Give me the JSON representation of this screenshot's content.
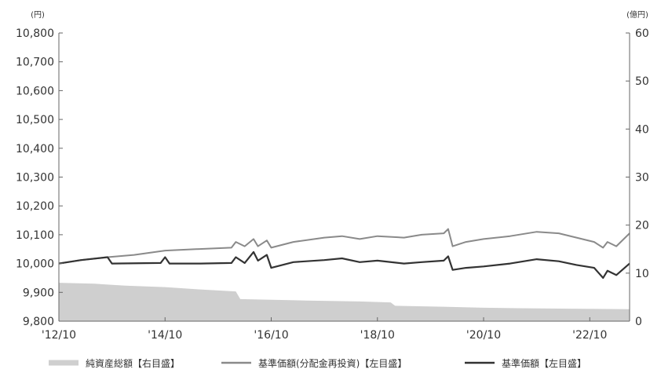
{
  "chart_data": {
    "type": "line",
    "left_axis": {
      "unit": "(円)",
      "min": 9800,
      "max": 10800,
      "ticks": [
        "9,800",
        "9,900",
        "10,000",
        "10,100",
        "10,200",
        "10,300",
        "10,400",
        "10,500",
        "10,600",
        "10,700",
        "10,800"
      ]
    },
    "right_axis": {
      "unit": "(億円)",
      "min": 0,
      "max": 60,
      "ticks": [
        "0",
        "10",
        "20",
        "30",
        "40",
        "50",
        "60"
      ]
    },
    "x_axis": {
      "start": "2012-10",
      "end": "2023-07",
      "ticks": [
        {
          "label": "'12/10",
          "date": "2012-10"
        },
        {
          "label": "'14/10",
          "date": "2014-10"
        },
        {
          "label": "'16/10",
          "date": "2016-10"
        },
        {
          "label": "'18/10",
          "date": "2018-10"
        },
        {
          "label": "'20/10",
          "date": "2020-10"
        },
        {
          "label": "'22/10",
          "date": "2022-10"
        }
      ]
    },
    "series": [
      {
        "name": "純資産総額【右目盛】",
        "type": "area",
        "axis": "right",
        "color": "#cfcfcf",
        "points": [
          [
            "2012-10",
            8.0
          ],
          [
            "2013-06",
            7.8
          ],
          [
            "2014-01",
            7.4
          ],
          [
            "2014-10",
            7.1
          ],
          [
            "2015-06",
            6.6
          ],
          [
            "2016-02",
            6.2
          ],
          [
            "2016-03",
            4.6
          ],
          [
            "2017-06",
            4.3
          ],
          [
            "2018-06",
            4.1
          ],
          [
            "2019-01",
            3.9
          ],
          [
            "2019-02",
            3.2
          ],
          [
            "2020-01",
            3.0
          ],
          [
            "2020-10",
            2.8
          ],
          [
            "2021-06",
            2.7
          ],
          [
            "2022-06",
            2.6
          ],
          [
            "2023-07",
            2.5
          ]
        ]
      },
      {
        "name": "基準価額(分配金再投資)【左目盛】",
        "type": "line",
        "axis": "left",
        "color": "#8a8a8a",
        "points": [
          [
            "2012-10",
            10000
          ],
          [
            "2013-03",
            10012
          ],
          [
            "2013-09",
            10022
          ],
          [
            "2014-03",
            10030
          ],
          [
            "2014-10",
            10045
          ],
          [
            "2015-05",
            10050
          ],
          [
            "2016-01",
            10055
          ],
          [
            "2016-02",
            10075
          ],
          [
            "2016-04",
            10060
          ],
          [
            "2016-06",
            10085
          ],
          [
            "2016-07",
            10060
          ],
          [
            "2016-09",
            10080
          ],
          [
            "2016-10",
            10055
          ],
          [
            "2017-03",
            10075
          ],
          [
            "2017-10",
            10090
          ],
          [
            "2018-02",
            10095
          ],
          [
            "2018-06",
            10085
          ],
          [
            "2018-10",
            10095
          ],
          [
            "2019-04",
            10090
          ],
          [
            "2019-08",
            10100
          ],
          [
            "2020-01",
            10105
          ],
          [
            "2020-02",
            10120
          ],
          [
            "2020-03",
            10060
          ],
          [
            "2020-06",
            10075
          ],
          [
            "2020-10",
            10085
          ],
          [
            "2021-04",
            10095
          ],
          [
            "2021-10",
            10110
          ],
          [
            "2022-03",
            10105
          ],
          [
            "2022-07",
            10090
          ],
          [
            "2022-11",
            10075
          ],
          [
            "2023-01",
            10055
          ],
          [
            "2023-02",
            10075
          ],
          [
            "2023-04",
            10060
          ],
          [
            "2023-07",
            10105
          ]
        ]
      },
      {
        "name": "基準価額【左目盛】",
        "type": "line",
        "axis": "left",
        "color": "#333333",
        "points": [
          [
            "2012-10",
            10000
          ],
          [
            "2013-03",
            10012
          ],
          [
            "2013-09",
            10022
          ],
          [
            "2013-10",
            10000
          ],
          [
            "2014-09",
            10002
          ],
          [
            "2014-10",
            10022
          ],
          [
            "2014-11",
            10000
          ],
          [
            "2015-06",
            10000
          ],
          [
            "2016-01",
            10002
          ],
          [
            "2016-02",
            10022
          ],
          [
            "2016-04",
            10002
          ],
          [
            "2016-06",
            10040
          ],
          [
            "2016-07",
            10010
          ],
          [
            "2016-09",
            10030
          ],
          [
            "2016-10",
            9985
          ],
          [
            "2017-03",
            10005
          ],
          [
            "2017-10",
            10012
          ],
          [
            "2018-02",
            10018
          ],
          [
            "2018-06",
            10005
          ],
          [
            "2018-10",
            10010
          ],
          [
            "2019-04",
            10000
          ],
          [
            "2019-08",
            10005
          ],
          [
            "2020-01",
            10010
          ],
          [
            "2020-02",
            10025
          ],
          [
            "2020-03",
            9978
          ],
          [
            "2020-06",
            9985
          ],
          [
            "2020-10",
            9990
          ],
          [
            "2021-04",
            10000
          ],
          [
            "2021-10",
            10015
          ],
          [
            "2022-03",
            10008
          ],
          [
            "2022-07",
            9995
          ],
          [
            "2022-11",
            9985
          ],
          [
            "2023-01",
            9950
          ],
          [
            "2023-02",
            9975
          ],
          [
            "2023-04",
            9960
          ],
          [
            "2023-07",
            10000
          ]
        ]
      }
    ],
    "legend": {
      "position": "bottom",
      "items": [
        {
          "label": "純資産総額【右目盛】",
          "color": "#cfcfcf",
          "style": "thick"
        },
        {
          "label": "基準価額(分配金再投資)【左目盛】",
          "color": "#8a8a8a",
          "style": "line"
        },
        {
          "label": "基準価額【左目盛】",
          "color": "#333333",
          "style": "line"
        }
      ]
    }
  }
}
